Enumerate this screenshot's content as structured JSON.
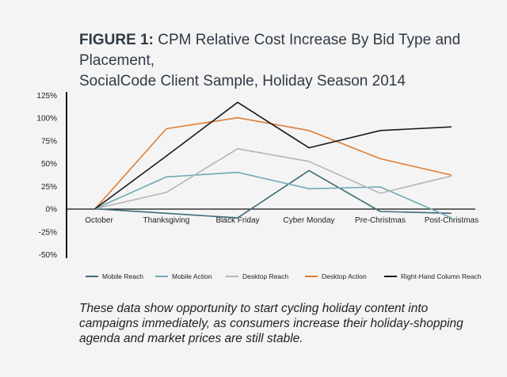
{
  "figure_label": "FIGURE 1:",
  "figure_title_line1": "CPM Relative Cost Increase By Bid Type and Placement,",
  "figure_title_line2": "SocialCode Client Sample, Holiday Season 2014",
  "caption": "These data show opportunity to start cycling holiday content into campaigns immediately, as consumers increase their holiday-shopping agenda and market prices are still stable.",
  "colors": {
    "mobile_reach": "#3e6b78",
    "mobile_action": "#6ea9b5",
    "desktop_reach": "#b5b5b5",
    "desktop_action": "#e07d35",
    "right_hand_column_reach": "#1a1a1a"
  },
  "chart_data": {
    "type": "line",
    "title": "CPM Relative Cost Increase By Bid Type and Placement, SocialCode Client Sample, Holiday Season 2014",
    "categories": [
      "October",
      "Thanksgiving",
      "Black Friday",
      "Cyber Monday",
      "Pre-Christmas",
      "Post-Christmas"
    ],
    "y_ticks": [
      "125%",
      "100%",
      "75%",
      "50%",
      "25%",
      "0%",
      "-25%",
      "-50%"
    ],
    "ylim": [
      -50,
      125
    ],
    "grid": false,
    "legend_position": "bottom",
    "series": [
      {
        "key": "mobile_reach",
        "name": "Mobile Reach",
        "values": [
          0,
          -5,
          -10,
          42,
          -3,
          -5
        ]
      },
      {
        "key": "mobile_action",
        "name": "Mobile Action",
        "values": [
          0,
          35,
          40,
          22,
          24,
          -10
        ]
      },
      {
        "key": "desktop_reach",
        "name": "Desktop Reach",
        "values": [
          0,
          18,
          66,
          52,
          17,
          36
        ]
      },
      {
        "key": "desktop_action",
        "name": "Desktop Action",
        "values": [
          0,
          88,
          100,
          86,
          55,
          37
        ]
      },
      {
        "key": "right_hand_column_reach",
        "name": "Right-Hand Column Reach",
        "values": [
          0,
          58,
          117,
          67,
          86,
          90
        ]
      }
    ]
  }
}
